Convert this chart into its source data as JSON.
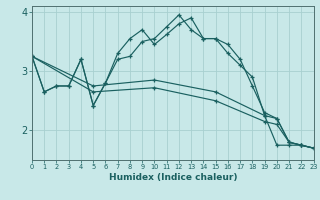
{
  "xlabel": "Humidex (Indice chaleur)",
  "bg_color": "#c8e8e8",
  "grid_color": "#a8d0d0",
  "line_color": "#1a6060",
  "xlim": [
    0,
    23
  ],
  "ylim": [
    1.5,
    4.1
  ],
  "yticks": [
    2,
    3,
    4
  ],
  "xticks": [
    0,
    1,
    2,
    3,
    4,
    5,
    6,
    7,
    8,
    9,
    10,
    11,
    12,
    13,
    14,
    15,
    16,
    17,
    18,
    19,
    20,
    21,
    22,
    23
  ],
  "lines": [
    {
      "x": [
        0,
        1,
        2,
        3,
        4,
        5,
        6,
        7,
        8,
        9,
        10,
        11,
        12,
        13,
        14,
        15,
        16,
        17,
        18,
        19,
        20,
        21,
        22,
        23
      ],
      "y": [
        3.25,
        2.65,
        2.75,
        2.75,
        3.2,
        2.42,
        2.8,
        3.2,
        3.25,
        3.5,
        3.55,
        3.75,
        3.95,
        3.7,
        3.55,
        3.55,
        3.3,
        3.1,
        2.9,
        2.25,
        1.75,
        1.75,
        1.75,
        1.7
      ]
    },
    {
      "x": [
        0,
        1,
        2,
        3,
        4,
        5,
        6,
        7,
        8,
        9,
        10,
        11,
        12,
        13,
        14,
        15,
        16,
        17,
        18,
        19,
        20,
        21,
        22,
        23
      ],
      "y": [
        3.25,
        2.65,
        2.75,
        2.75,
        3.2,
        2.42,
        2.8,
        3.3,
        3.55,
        3.7,
        3.45,
        3.62,
        3.8,
        3.9,
        3.55,
        3.55,
        3.45,
        3.2,
        2.75,
        2.3,
        2.2,
        1.8,
        1.75,
        1.7
      ]
    },
    {
      "x": [
        0,
        5,
        10,
        15,
        19,
        20,
        21,
        22,
        23
      ],
      "y": [
        3.25,
        2.75,
        2.85,
        2.65,
        2.25,
        2.2,
        1.8,
        1.75,
        1.7
      ]
    },
    {
      "x": [
        0,
        5,
        10,
        15,
        19,
        20,
        21,
        22,
        23
      ],
      "y": [
        3.25,
        2.65,
        2.72,
        2.5,
        2.15,
        2.1,
        1.8,
        1.75,
        1.7
      ]
    }
  ]
}
